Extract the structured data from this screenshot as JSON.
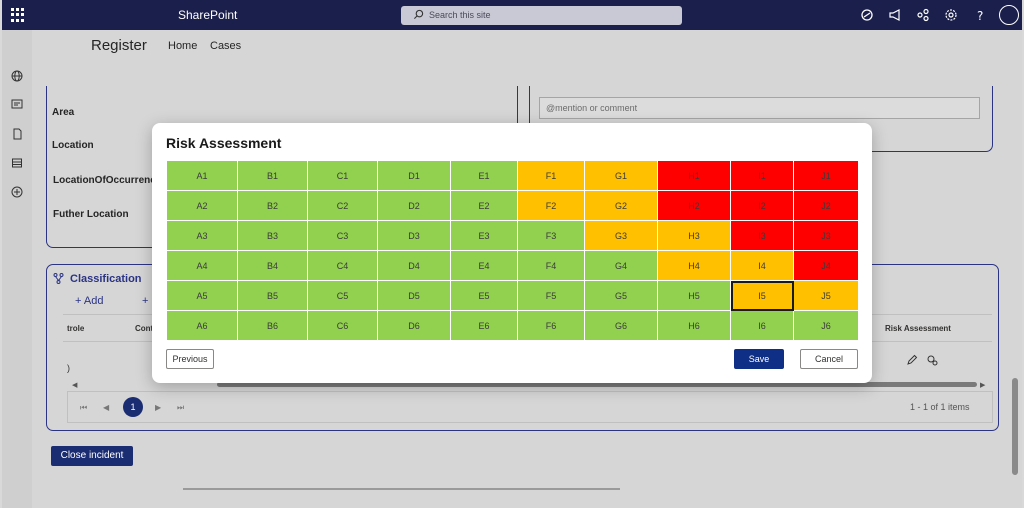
{
  "topbar": {
    "brand": "SharePoint",
    "search_placeholder": "Search this site"
  },
  "site": {
    "title": "Register",
    "nav": [
      "Home",
      "Cases"
    ]
  },
  "form": {
    "fields": [
      "Area",
      "Location",
      "LocationOfOccurrence",
      "Futher Location"
    ],
    "comment_placeholder": "@mention or comment"
  },
  "classification": {
    "title": "Classification",
    "add_label": "Add",
    "col_controle": "trole",
    "col_cont": "Cont",
    "col_risk": "Risk Assessment",
    "row_fragment": ")"
  },
  "pager": {
    "current": "1",
    "info": "1 - 1 of 1 items"
  },
  "close_incident_label": "Close incident",
  "modal": {
    "title": "Risk Assessment",
    "selected_cell": "I5",
    "colors": {
      "green": "#92d050",
      "amber": "#ffc000",
      "red": "#ff0000"
    },
    "rows": [
      [
        [
          "A1",
          "green"
        ],
        [
          "B1",
          "green"
        ],
        [
          "C1",
          "green"
        ],
        [
          "D1",
          "green"
        ],
        [
          "E1",
          "green"
        ],
        [
          "F1",
          "amber"
        ],
        [
          "G1",
          "amber"
        ],
        [
          "H1",
          "red"
        ],
        [
          "I1",
          "red"
        ],
        [
          "J1",
          "red"
        ]
      ],
      [
        [
          "A2",
          "green"
        ],
        [
          "B2",
          "green"
        ],
        [
          "C2",
          "green"
        ],
        [
          "D2",
          "green"
        ],
        [
          "E2",
          "green"
        ],
        [
          "F2",
          "amber"
        ],
        [
          "G2",
          "amber"
        ],
        [
          "H2",
          "red"
        ],
        [
          "I2",
          "red"
        ],
        [
          "J2",
          "red"
        ]
      ],
      [
        [
          "A3",
          "green"
        ],
        [
          "B3",
          "green"
        ],
        [
          "C3",
          "green"
        ],
        [
          "D3",
          "green"
        ],
        [
          "E3",
          "green"
        ],
        [
          "F3",
          "green"
        ],
        [
          "G3",
          "amber"
        ],
        [
          "H3",
          "amber"
        ],
        [
          "I3",
          "red"
        ],
        [
          "J3",
          "red"
        ]
      ],
      [
        [
          "A4",
          "green"
        ],
        [
          "B4",
          "green"
        ],
        [
          "C4",
          "green"
        ],
        [
          "D4",
          "green"
        ],
        [
          "E4",
          "green"
        ],
        [
          "F4",
          "green"
        ],
        [
          "G4",
          "green"
        ],
        [
          "H4",
          "amber"
        ],
        [
          "I4",
          "amber"
        ],
        [
          "J4",
          "red"
        ]
      ],
      [
        [
          "A5",
          "green"
        ],
        [
          "B5",
          "green"
        ],
        [
          "C5",
          "green"
        ],
        [
          "D5",
          "green"
        ],
        [
          "E5",
          "green"
        ],
        [
          "F5",
          "green"
        ],
        [
          "G5",
          "green"
        ],
        [
          "H5",
          "green"
        ],
        [
          "I5",
          "amber"
        ],
        [
          "J5",
          "amber"
        ]
      ],
      [
        [
          "A6",
          "green"
        ],
        [
          "B6",
          "green"
        ],
        [
          "C6",
          "green"
        ],
        [
          "D6",
          "green"
        ],
        [
          "E6",
          "green"
        ],
        [
          "F6",
          "green"
        ],
        [
          "G6",
          "green"
        ],
        [
          "H6",
          "green"
        ],
        [
          "I6",
          "green"
        ],
        [
          "J6",
          "green"
        ]
      ]
    ],
    "previous_label": "Previous",
    "save_label": "Save",
    "cancel_label": "Cancel"
  }
}
